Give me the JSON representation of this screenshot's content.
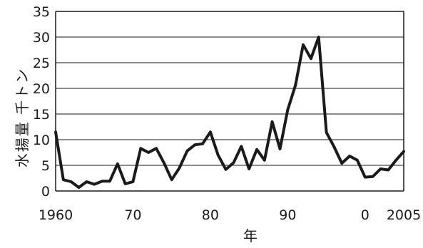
{
  "chart_data": {
    "type": "line",
    "xlabel": "年",
    "ylabel": "水揚量 千トン",
    "ylim": [
      0,
      35
    ],
    "xlim": [
      1960,
      2005
    ],
    "grid": "horizontal",
    "y_ticks": [
      {
        "value": 0,
        "label": "0"
      },
      {
        "value": 5,
        "label": "5"
      },
      {
        "value": 10,
        "label": "10"
      },
      {
        "value": 15,
        "label": "15"
      },
      {
        "value": 20,
        "label": "20"
      },
      {
        "value": 25,
        "label": "25"
      },
      {
        "value": 30,
        "label": "30"
      },
      {
        "value": 35,
        "label": "35"
      }
    ],
    "x_ticks": [
      {
        "value": 1960,
        "label": "1960"
      },
      {
        "value": 1970,
        "label": "70"
      },
      {
        "value": 1980,
        "label": "80"
      },
      {
        "value": 1990,
        "label": "90"
      },
      {
        "value": 2000,
        "label": "0"
      },
      {
        "value": 2005,
        "label": "2005"
      }
    ],
    "series": [
      {
        "x": [
          1960,
          1961,
          1962,
          1963,
          1964,
          1965,
          1966,
          1967,
          1968,
          1969,
          1970,
          1971,
          1972,
          1973,
          1974,
          1975,
          1976,
          1977,
          1978,
          1979,
          1980,
          1981,
          1982,
          1983,
          1984,
          1985,
          1986,
          1987,
          1988,
          1989,
          1990,
          1991,
          1992,
          1993,
          1994,
          1995,
          1996,
          1997,
          1998,
          1999,
          2000,
          2001,
          2002,
          2003,
          2004,
          2005
        ],
        "values": [
          11.5,
          2.2,
          1.8,
          0.7,
          1.8,
          1.3,
          1.9,
          1.9,
          5.3,
          1.4,
          1.8,
          8.3,
          7.5,
          8.3,
          5.5,
          2.2,
          4.5,
          7.8,
          9,
          9.2,
          11.5,
          7,
          4.2,
          5.5,
          8.7,
          4.3,
          8.1,
          6,
          13.5,
          8.2,
          15.8,
          20.6,
          28.5,
          25.8,
          30,
          11.4,
          8.6,
          5.4,
          6.8,
          6,
          2.7,
          2.8,
          4.3,
          4.1,
          6,
          7.7
        ],
        "color": "#1a1a1a"
      }
    ]
  }
}
